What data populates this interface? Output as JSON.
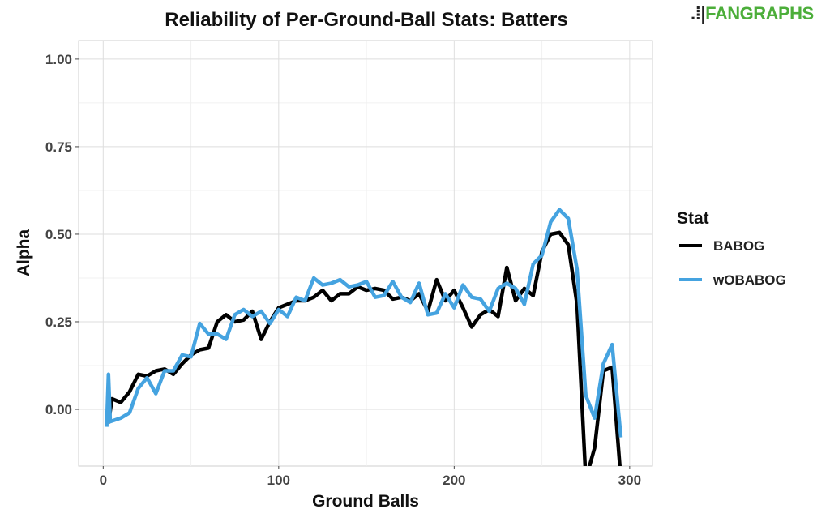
{
  "logo": {
    "text": "FANGRAPHS",
    "color": "#4cae3a"
  },
  "chart_data": {
    "type": "line",
    "title": "Reliability of Per-Ground-Ball Stats: Batters",
    "xlabel": "Ground Balls",
    "ylabel": "Alpha",
    "xlim": [
      -14,
      313
    ],
    "ylim": [
      -0.162,
      1.053
    ],
    "xticks": [
      0,
      100,
      200,
      300
    ],
    "xtick_labels": [
      "0",
      "100",
      "200",
      "300"
    ],
    "yticks": [
      0,
      0.25,
      0.5,
      0.75,
      1.0
    ],
    "ytick_labels": [
      "0.00",
      "0.25",
      "0.50",
      "0.75",
      "1.00"
    ],
    "grid": true,
    "legend": {
      "title": "Stat",
      "placement": "right"
    },
    "series": [
      {
        "name": "BABOG",
        "color": "#000000",
        "x": [
          3,
          5,
          10,
          15,
          20,
          25,
          30,
          35,
          40,
          45,
          50,
          55,
          60,
          65,
          70,
          75,
          80,
          85,
          90,
          95,
          100,
          105,
          110,
          115,
          120,
          125,
          130,
          135,
          140,
          145,
          150,
          155,
          160,
          165,
          170,
          175,
          180,
          185,
          190,
          195,
          200,
          205,
          210,
          215,
          220,
          225,
          230,
          235,
          240,
          245,
          250,
          255,
          260,
          265,
          270,
          275,
          280,
          285,
          290,
          295
        ],
        "y": [
          -0.04,
          0.03,
          0.02,
          0.05,
          0.1,
          0.095,
          0.11,
          0.115,
          0.1,
          0.13,
          0.155,
          0.17,
          0.175,
          0.25,
          0.27,
          0.25,
          0.255,
          0.28,
          0.2,
          0.25,
          0.29,
          0.3,
          0.31,
          0.31,
          0.32,
          0.34,
          0.31,
          0.33,
          0.33,
          0.35,
          0.34,
          0.345,
          0.34,
          0.315,
          0.32,
          0.31,
          0.33,
          0.28,
          0.37,
          0.31,
          0.34,
          0.29,
          0.235,
          0.27,
          0.285,
          0.265,
          0.405,
          0.31,
          0.345,
          0.325,
          0.45,
          0.5,
          0.505,
          0.47,
          0.3,
          -0.2,
          -0.11,
          0.11,
          0.12,
          -0.2
        ]
      },
      {
        "name": "wOBABOG",
        "color": "#45a3e0",
        "x": [
          2,
          3,
          4,
          10,
          15,
          20,
          25,
          30,
          35,
          40,
          45,
          50,
          55,
          60,
          65,
          70,
          75,
          80,
          85,
          90,
          95,
          100,
          105,
          110,
          115,
          120,
          125,
          130,
          135,
          140,
          145,
          150,
          155,
          160,
          165,
          170,
          175,
          180,
          185,
          190,
          195,
          200,
          205,
          210,
          215,
          220,
          225,
          230,
          235,
          240,
          245,
          250,
          255,
          260,
          265,
          270,
          275,
          280,
          285,
          290,
          295
        ],
        "y": [
          -0.05,
          0.1,
          -0.035,
          -0.025,
          -0.01,
          0.06,
          0.09,
          0.045,
          0.11,
          0.11,
          0.155,
          0.15,
          0.245,
          0.215,
          0.215,
          0.2,
          0.27,
          0.285,
          0.265,
          0.28,
          0.245,
          0.285,
          0.265,
          0.32,
          0.31,
          0.375,
          0.355,
          0.36,
          0.37,
          0.35,
          0.355,
          0.365,
          0.32,
          0.325,
          0.365,
          0.32,
          0.305,
          0.36,
          0.27,
          0.275,
          0.33,
          0.29,
          0.355,
          0.32,
          0.315,
          0.28,
          0.345,
          0.36,
          0.345,
          0.3,
          0.415,
          0.44,
          0.535,
          0.57,
          0.545,
          0.4,
          0.04,
          -0.025,
          0.13,
          0.185,
          -0.08
        ]
      }
    ]
  }
}
